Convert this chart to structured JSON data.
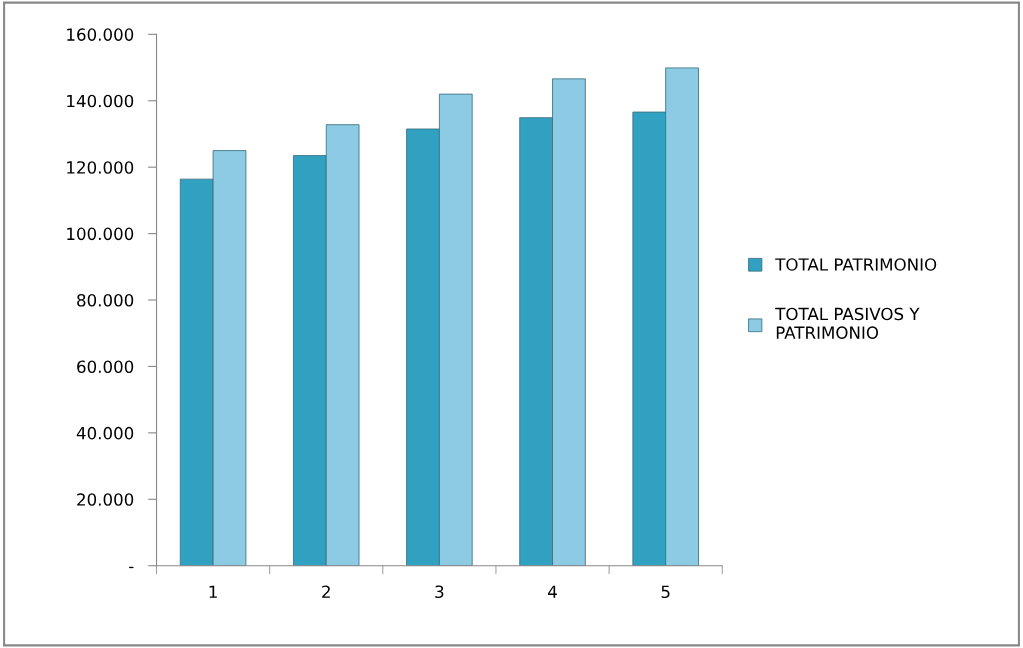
{
  "chart_data": {
    "type": "bar",
    "categories": [
      "1",
      "2",
      "3",
      "4",
      "5"
    ],
    "series": [
      {
        "name": "TOTAL PATRIMONIO",
        "color": "#31a1c1",
        "values": [
          116.4,
          123.5,
          131.5,
          134.9,
          136.6
        ]
      },
      {
        "name": "TOTAL PASIVOS Y\nPATRIMONIO",
        "color": "#8ccbe3",
        "values": [
          125.0,
          132.8,
          142.0,
          146.6,
          149.9
        ]
      }
    ],
    "ylim": [
      0,
      160
    ],
    "yticks": [
      {
        "value": 0,
        "label": "-"
      },
      {
        "value": 20,
        "label": "20.000"
      },
      {
        "value": 40,
        "label": "40.000"
      },
      {
        "value": 60,
        "label": "60.000"
      },
      {
        "value": 80,
        "label": "80.000"
      },
      {
        "value": 100,
        "label": "100.000"
      },
      {
        "value": 120,
        "label": "120.000"
      },
      {
        "value": 140,
        "label": "140.000"
      },
      {
        "value": 160,
        "label": "160.000"
      }
    ],
    "grid": false,
    "legend": "right"
  }
}
